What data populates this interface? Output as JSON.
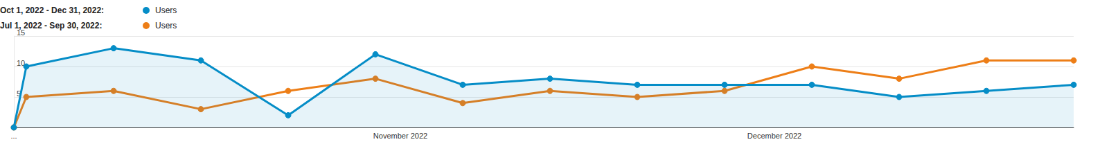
{
  "chart_data": {
    "type": "line",
    "x": [
      0,
      1,
      8,
      15,
      22,
      29,
      36,
      43,
      50,
      57,
      64,
      71,
      78,
      85
    ],
    "xlim": [
      0,
      85
    ],
    "xticks": [
      {
        "value": 0,
        "label": "..."
      },
      {
        "value": 31,
        "label": "November 2022"
      },
      {
        "value": 61,
        "label": "December 2022"
      }
    ],
    "ylim": [
      0,
      15
    ],
    "yticks": [
      5,
      10,
      15
    ],
    "grid": true,
    "legend": "top-left",
    "marker": "circle",
    "series": [
      {
        "name": "Users",
        "period": "Oct 1, 2022 - Dec 31, 2022:",
        "color": "#058dc7",
        "type": "area",
        "values": [
          0,
          10,
          13,
          11,
          2,
          12,
          7,
          8,
          7,
          7,
          7,
          5,
          6,
          7
        ]
      },
      {
        "name": "Users",
        "period": "Jul 1, 2022 - Sep 30, 2022:",
        "color": "#ed7e17",
        "type": "line",
        "values": [
          0,
          5,
          6,
          3,
          6,
          8,
          4,
          6,
          5,
          6,
          10,
          8,
          11,
          11
        ]
      }
    ]
  }
}
